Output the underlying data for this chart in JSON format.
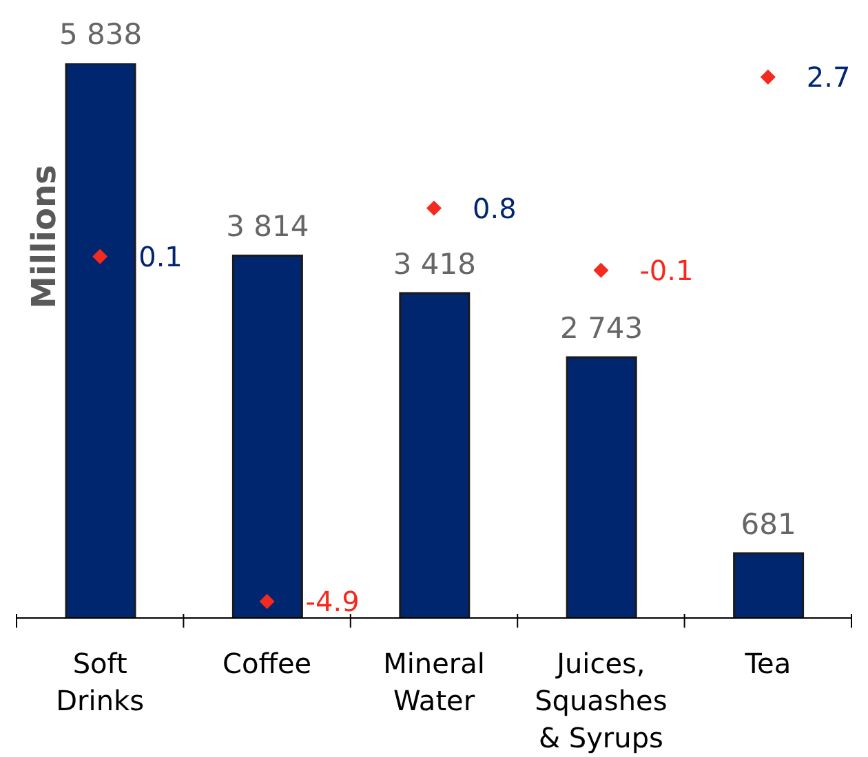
{
  "chart_data": {
    "type": "bar",
    "ylabel": "Millions",
    "tick_labels": "x",
    "categories": [
      "Soft Drinks",
      "Coffee",
      "Mineral Water",
      "Juices, Squashes & Syrups",
      "Tea"
    ],
    "series": [
      {
        "color": "#00266f",
        "values": [
          5838,
          3814,
          3418,
          2743,
          681
        ],
        "value_labels": [
          "5 838",
          "3 814",
          "3 418",
          "2 743",
          "681"
        ]
      },
      {
        "type": "scatter",
        "axis": "y2",
        "marker": "diamond",
        "color": "#f52a1e",
        "values": [
          0.1,
          -4.9,
          0.8,
          -0.1,
          2.7
        ],
        "value_labels": [
          "0.1",
          "-4.9",
          "0.8",
          "-0.1",
          "2.7"
        ]
      }
    ]
  }
}
